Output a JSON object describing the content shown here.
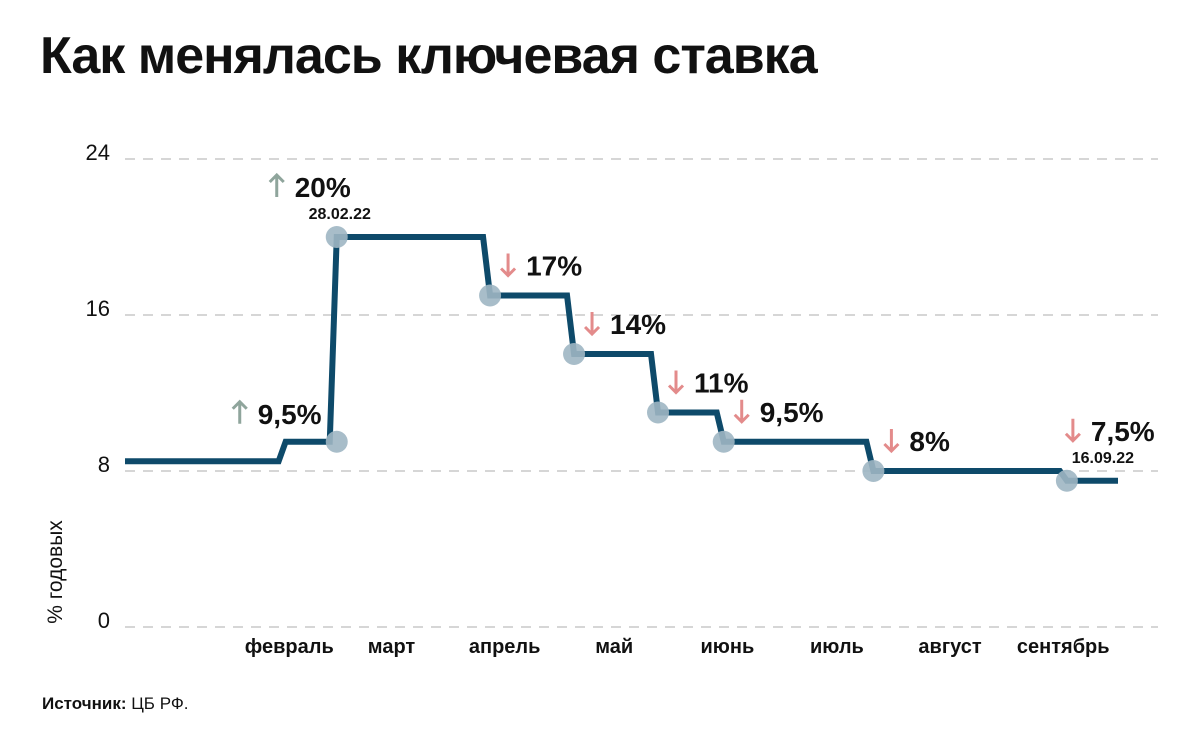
{
  "title": "Как менялась ключевая ставка",
  "source": {
    "label": "Источник:",
    "value": "ЦБ РФ."
  },
  "colors": {
    "line": "#0e4a6a",
    "marker": "#9fb6c3",
    "up_arrow": "#8fa59c",
    "down_arrow": "#e38b8b",
    "grid": "#c8c8c8"
  },
  "chart_data": {
    "type": "line",
    "step": true,
    "ylabel": "% годовых",
    "yticks": [
      0,
      8,
      16,
      24
    ],
    "ylim": [
      0,
      24
    ],
    "grid": "dashed-horizontal",
    "months": [
      "февраль",
      "март",
      "апрель",
      "май",
      "июнь",
      "июль",
      "август",
      "сентябрь"
    ],
    "series": [
      {
        "points": [
          {
            "x": "2022-01-01",
            "y": 8.5
          },
          {
            "x": "2022-02-14",
            "y": 9.5
          },
          {
            "x": "2022-02-28",
            "y": 20
          },
          {
            "x": "2022-04-11",
            "y": 17
          },
          {
            "x": "2022-05-04",
            "y": 14
          },
          {
            "x": "2022-05-27",
            "y": 11
          },
          {
            "x": "2022-06-14",
            "y": 9.5
          },
          {
            "x": "2022-07-25",
            "y": 8
          },
          {
            "x": "2022-09-16",
            "y": 7.5
          },
          {
            "x": "2022-09-30",
            "y": 7.5
          }
        ]
      }
    ],
    "annotations": [
      {
        "x": "2022-02-28",
        "y": 9.5,
        "label": "9,5%",
        "direction": "up"
      },
      {
        "x": "2022-02-28",
        "y": 20,
        "label": "20%",
        "date": "28.02.22",
        "direction": "up"
      },
      {
        "x": "2022-04-11",
        "y": 17,
        "label": "17%",
        "direction": "down"
      },
      {
        "x": "2022-05-04",
        "y": 14,
        "label": "14%",
        "direction": "down"
      },
      {
        "x": "2022-05-27",
        "y": 11,
        "label": "11%",
        "direction": "down"
      },
      {
        "x": "2022-06-14",
        "y": 9.5,
        "label": "9,5%",
        "direction": "down"
      },
      {
        "x": "2022-07-25",
        "y": 8,
        "label": "8%",
        "direction": "down"
      },
      {
        "x": "2022-09-16",
        "y": 7.5,
        "label": "7,5%",
        "date": "16.09.22",
        "direction": "down"
      }
    ]
  }
}
